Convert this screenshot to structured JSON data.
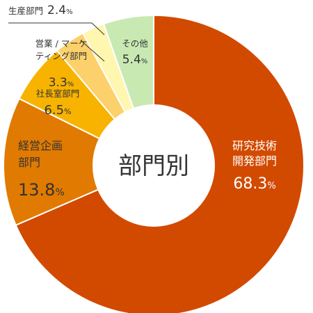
{
  "chart_data": {
    "type": "pie",
    "donut": true,
    "center_label": "部門別",
    "unit": "%",
    "slices": [
      {
        "label_lines": [
          "研究技術",
          "開発部門"
        ],
        "value": 68.3,
        "value_text": "68.3",
        "color": "#D24A00"
      },
      {
        "label_lines": [
          "経営企画",
          "部門"
        ],
        "value": 13.8,
        "value_text": "13.8",
        "color": "#E17A00"
      },
      {
        "label_lines": [
          "社長室部門"
        ],
        "value": 6.5,
        "value_text": "6.5",
        "color": "#F7B300"
      },
      {
        "label_lines": [
          "営業 / マーケ",
          "ティング部門"
        ],
        "value": 3.3,
        "value_text": "3.3",
        "color": "#FCD06B"
      },
      {
        "label_lines": [
          "生産部門"
        ],
        "value": 2.4,
        "value_text": "2.4",
        "color": "#FFF6B0"
      },
      {
        "label_lines": [
          "その他"
        ],
        "value": 5.4,
        "value_text": "5.4",
        "color": "#C8EAB2"
      }
    ]
  }
}
